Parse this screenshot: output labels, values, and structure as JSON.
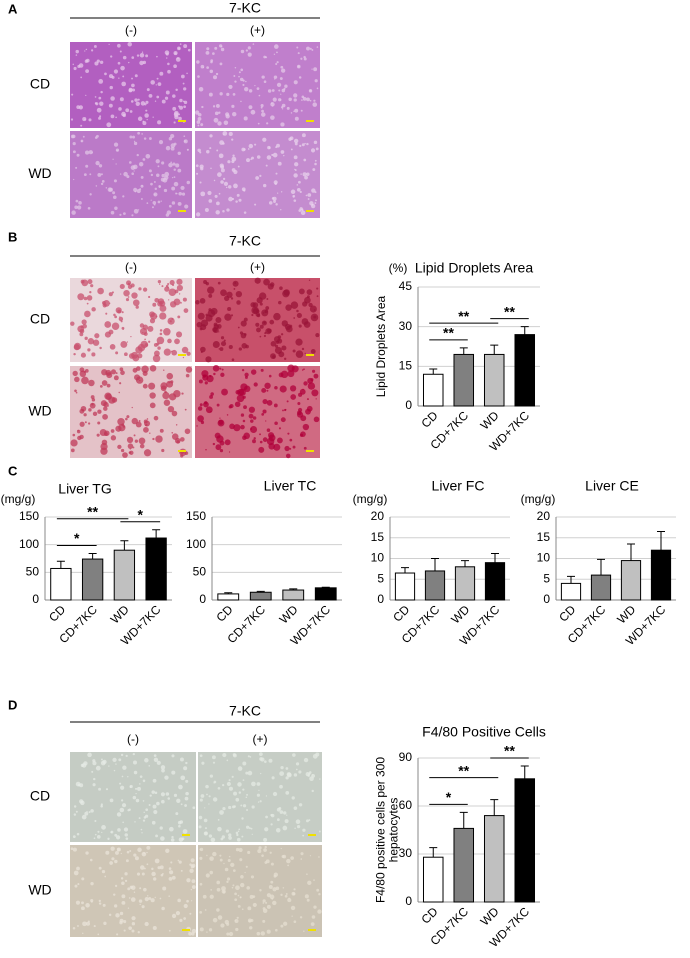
{
  "panels": [
    {
      "label": "A",
      "header": "7-KC",
      "columns": [
        "(-)",
        "(+)"
      ],
      "rows": [
        "CD",
        "WD"
      ]
    },
    {
      "label": "B",
      "header": "7-KC",
      "columns": [
        "(-)",
        "(+)"
      ],
      "rows": [
        "CD",
        "WD"
      ]
    },
    {
      "label": "C"
    },
    {
      "label": "D",
      "header": "7-KC",
      "columns": [
        "(-)",
        "(+)"
      ],
      "rows": [
        "CD",
        "WD"
      ]
    }
  ],
  "chart_data": [
    {
      "type": "bar",
      "title": "Lipid Droplets Area",
      "unit": "(%)",
      "ylabel": [
        "Lipid Droplets Area"
      ],
      "categories": [
        "CD",
        "CD+7KC",
        "WD",
        "WD+7KC"
      ],
      "values": [
        12,
        19.5,
        19.5,
        27
      ],
      "errors": [
        2,
        2.5,
        3.5,
        3
      ],
      "colors": [
        "#ffffff",
        "#808080",
        "#c0c0c0",
        "#000000"
      ],
      "ylim": [
        0,
        45
      ],
      "yticks": [
        0,
        15,
        30,
        45
      ],
      "grid": true,
      "annotations": [
        "**",
        "**",
        "**"
      ]
    },
    {
      "type": "bar",
      "title": "Liver TG",
      "unit": "(mg/g)",
      "categories": [
        "CD",
        "CD+7KC",
        "WD",
        "WD+7KC"
      ],
      "values": [
        57,
        74,
        90,
        112
      ],
      "errors": [
        13,
        10,
        17,
        15
      ],
      "colors": [
        "#ffffff",
        "#808080",
        "#c0c0c0",
        "#000000"
      ],
      "ylim": [
        0,
        150
      ],
      "yticks": [
        0,
        50,
        100,
        150
      ],
      "grid": true,
      "annotations": [
        "*",
        "**",
        "*"
      ]
    },
    {
      "type": "bar",
      "title": "Liver TC",
      "categories": [
        "CD",
        "CD+7KC",
        "WD",
        "WD+7KC"
      ],
      "values": [
        11,
        14,
        18,
        22
      ],
      "errors": [
        2,
        1.5,
        2,
        1
      ],
      "colors": [
        "#ffffff",
        "#808080",
        "#c0c0c0",
        "#000000"
      ],
      "ylim": [
        0,
        150
      ],
      "yticks": [
        0,
        50,
        100,
        150
      ],
      "grid": true
    },
    {
      "type": "bar",
      "title": "Liver FC",
      "unit": "(mg/g)",
      "categories": [
        "CD",
        "CD+7KC",
        "WD",
        "WD+7KC"
      ],
      "values": [
        6.5,
        7,
        8,
        9
      ],
      "errors": [
        1.3,
        3,
        1.5,
        2.2
      ],
      "colors": [
        "#ffffff",
        "#808080",
        "#c0c0c0",
        "#000000"
      ],
      "ylim": [
        0,
        20
      ],
      "yticks": [
        0,
        5,
        10,
        15,
        20
      ],
      "grid": true
    },
    {
      "type": "bar",
      "title": "Liver CE",
      "unit": "(mg/g)",
      "categories": [
        "CD",
        "CD+7KC",
        "WD",
        "WD+7KC"
      ],
      "values": [
        4,
        6,
        9.5,
        12
      ],
      "errors": [
        1.7,
        3.8,
        4,
        4.5
      ],
      "colors": [
        "#ffffff",
        "#808080",
        "#c0c0c0",
        "#000000"
      ],
      "ylim": [
        0,
        20
      ],
      "yticks": [
        0,
        5,
        10,
        15,
        20
      ],
      "grid": true
    },
    {
      "type": "bar",
      "title": "F4/80 Positive Cells",
      "ylabel": [
        "F4/80 positive cells per 300",
        "hepatocytes"
      ],
      "categories": [
        "CD",
        "CD+7KC",
        "WD",
        "WD+7KC"
      ],
      "values": [
        28,
        46,
        54,
        77
      ],
      "errors": [
        6,
        10,
        10,
        8
      ],
      "colors": [
        "#ffffff",
        "#808080",
        "#c0c0c0",
        "#000000"
      ],
      "ylim": [
        0,
        90
      ],
      "yticks": [
        0,
        30,
        60,
        90
      ],
      "grid": true,
      "annotations": [
        "*",
        "**",
        "**"
      ]
    }
  ]
}
